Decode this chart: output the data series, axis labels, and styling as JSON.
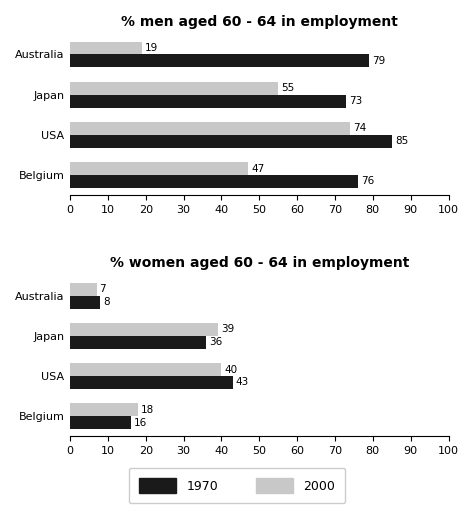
{
  "men_title": "% men aged 60 - 64 in employment",
  "women_title": "% women aged 60 - 64 in employment",
  "countries": [
    "Belgium",
    "USA",
    "Japan",
    "Australia"
  ],
  "men_1970": [
    79,
    73,
    85,
    76
  ],
  "men_2000": [
    19,
    55,
    74,
    47
  ],
  "women_1970": [
    8,
    36,
    43,
    16
  ],
  "women_2000": [
    7,
    39,
    40,
    18
  ],
  "color_1970": "#1a1a1a",
  "color_2000": "#c8c8c8",
  "xlim": [
    0,
    100
  ],
  "xticks": [
    0,
    10,
    20,
    30,
    40,
    50,
    60,
    70,
    80,
    90,
    100
  ],
  "bar_height": 0.32,
  "label_1970": "1970",
  "label_2000": "2000",
  "title_fontsize": 10,
  "tick_fontsize": 8,
  "label_fontsize": 7.5,
  "bg_color": "#ffffff"
}
